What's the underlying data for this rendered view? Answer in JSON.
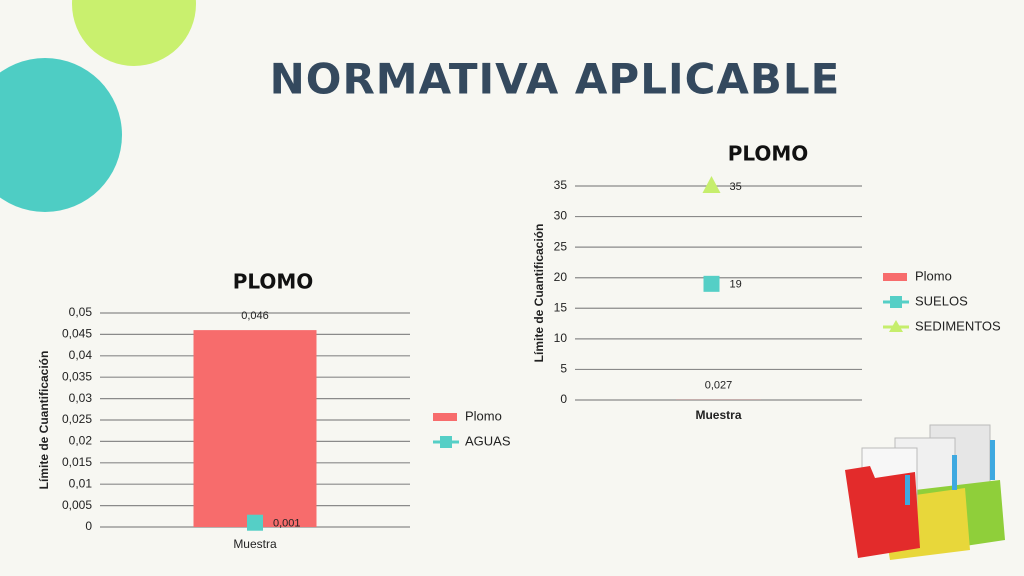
{
  "title": "NORMATIVA APLICABLE",
  "chart_data": [
    {
      "type": "bar",
      "title": "PLOMO",
      "y_label": "Límite de Cuantificación",
      "categories": [
        "Muestra"
      ],
      "series": [
        {
          "name": "Plomo",
          "color": "#f76c6c",
          "marker": "bar",
          "values": [
            0.046
          ],
          "value_labels": [
            "0,046"
          ]
        },
        {
          "name": "AGUAS",
          "color": "#55cfc6",
          "marker": "square",
          "values": [
            0.001
          ],
          "value_labels": [
            "0,001"
          ]
        }
      ],
      "ylim": [
        0,
        0.05
      ],
      "yticks": [
        0,
        {
          "value": 0.005,
          "label": "0,005"
        },
        {
          "value": 0.01,
          "label": "0,01"
        },
        {
          "value": 0.015,
          "label": "0,015"
        },
        {
          "value": 0.02,
          "label": "0,02"
        },
        {
          "value": 0.025,
          "label": "0,025"
        },
        {
          "value": 0.03,
          "label": "0,03"
        },
        {
          "value": 0.035,
          "label": "0,035"
        },
        {
          "value": 0.04,
          "label": "0,04"
        },
        {
          "value": 0.045,
          "label": "0,045"
        },
        {
          "value": 0.05,
          "label": "0,05"
        }
      ],
      "grid": true,
      "legend": "right"
    },
    {
      "type": "bar",
      "title": "PLOMO",
      "y_label": "Límite de Cuantificación",
      "categories": [
        "Muestra"
      ],
      "series": [
        {
          "name": "Plomo",
          "color": "#f76c6c",
          "marker": "bar",
          "values": [
            0.027
          ],
          "value_labels": [
            "0,027"
          ]
        },
        {
          "name": "SUELOS",
          "color": "#55cfc6",
          "marker": "square",
          "values": [
            19
          ]
        },
        {
          "name": "SEDIMENTOS",
          "color": "#c6ee6c",
          "marker": "triangle",
          "values": [
            35
          ]
        }
      ],
      "ylim": [
        0,
        35
      ],
      "yticks": [
        0,
        5,
        10,
        15,
        20,
        25,
        30,
        35
      ],
      "grid": true,
      "legend": "right"
    }
  ]
}
